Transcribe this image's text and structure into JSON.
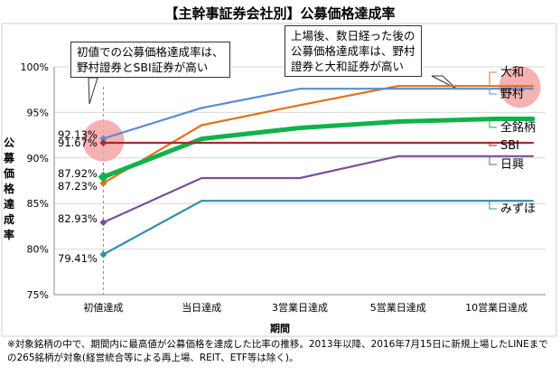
{
  "title": "【主幹事証券会社別】公募価格達成率",
  "ylabel": "公募価格達成率",
  "xlabel": "期間",
  "note": "※対象銘柄の中で、期間内に最高値が公募価格を達成した比率の推移。2013年以降、2016年7月15日に新規上場したLINEまでの265銘柄が対象(経営統合等による再上場、REIT、ETF等は除く)。",
  "callout_left": [
    "初値での公募価格達成率は、",
    "野村證券とSBI証券が高い"
  ],
  "callout_right": [
    "上場後、数日経った後の",
    "公募価格達成率は、野村",
    "證券と大和証券が高い"
  ],
  "colors": {
    "大和": "#e0711e",
    "野村": "#5b8ccf",
    "全銘柄": "#12b24a",
    "SBI": "#a52a2a",
    "日興": "#7b4e9b",
    "みずほ": "#2f8fa8",
    "highlight": "#f4a3a3"
  },
  "chart_data": {
    "type": "line",
    "categories": [
      "初値達成",
      "当日達成",
      "3営業日達成",
      "5営業日達成",
      "10営業日達成"
    ],
    "ylim": [
      75,
      100
    ],
    "yticks": [
      "75%",
      "80%",
      "85%",
      "90%",
      "95%",
      "100%"
    ],
    "grid": true,
    "series": [
      {
        "name": "大和",
        "values": [
          87.23,
          93.6,
          95.8,
          97.9,
          97.9
        ]
      },
      {
        "name": "野村",
        "values": [
          92.13,
          95.5,
          97.6,
          97.6,
          97.6
        ]
      },
      {
        "name": "全銘柄",
        "values": [
          87.92,
          92.1,
          93.3,
          94.0,
          94.3
        ]
      },
      {
        "name": "SBI",
        "values": [
          91.67,
          91.67,
          91.67,
          91.67,
          91.67
        ]
      },
      {
        "name": "日興",
        "values": [
          82.93,
          87.8,
          87.8,
          90.2,
          90.2
        ]
      },
      {
        "name": "みずほ",
        "values": [
          79.41,
          85.3,
          85.3,
          85.3,
          85.3
        ]
      }
    ],
    "data_labels": [
      {
        "series": "野村",
        "text": "92.13%"
      },
      {
        "series": "SBI",
        "text": "91.67%"
      },
      {
        "series": "全銘柄",
        "text": "87.92%"
      },
      {
        "series": "大和",
        "text": "87.23%"
      },
      {
        "series": "日興",
        "text": "82.93%"
      },
      {
        "series": "みずほ",
        "text": "79.41%"
      }
    ]
  }
}
